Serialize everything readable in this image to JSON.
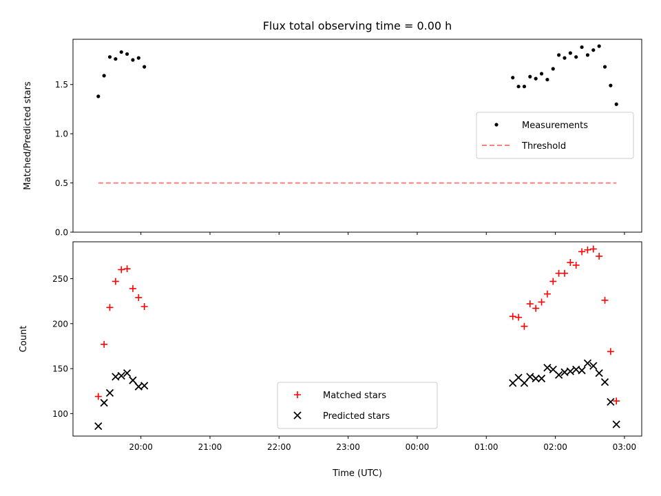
{
  "title": "Flux total observing time = 0.00 h",
  "chart_data": [
    {
      "type": "scatter",
      "ylabel": "Matched/Predicted stars",
      "xlabel": "",
      "xlim": [
        "19:01",
        "03:15"
      ],
      "ylim": [
        0.0,
        1.96
      ],
      "y_ticks": [
        "0.0",
        "0.5",
        "1.0",
        "1.5"
      ],
      "x_ticks": [
        "20:00",
        "21:00",
        "22:00",
        "23:00",
        "00:00",
        "01:00",
        "02:00",
        "03:00"
      ],
      "x_tick_labels_visible": false,
      "legend": {
        "position": "center-right",
        "entries": [
          "Measurements",
          "Threshold"
        ]
      },
      "series": [
        {
          "name": "Measurements",
          "marker": "dot",
          "color": "#000000",
          "points": [
            [
              "19:23",
              1.38
            ],
            [
              "19:28",
              1.59
            ],
            [
              "19:33",
              1.78
            ],
            [
              "19:38",
              1.76
            ],
            [
              "19:43",
              1.83
            ],
            [
              "19:48",
              1.81
            ],
            [
              "19:53",
              1.75
            ],
            [
              "19:58",
              1.77
            ],
            [
              "20:03",
              1.68
            ],
            [
              "01:23",
              1.57
            ],
            [
              "01:28",
              1.48
            ],
            [
              "01:33",
              1.48
            ],
            [
              "01:38",
              1.58
            ],
            [
              "01:43",
              1.56
            ],
            [
              "01:48",
              1.61
            ],
            [
              "01:53",
              1.55
            ],
            [
              "01:58",
              1.66
            ],
            [
              "02:03",
              1.8
            ],
            [
              "02:08",
              1.77
            ],
            [
              "02:13",
              1.82
            ],
            [
              "02:18",
              1.78
            ],
            [
              "02:23",
              1.88
            ],
            [
              "02:28",
              1.8
            ],
            [
              "02:33",
              1.85
            ],
            [
              "02:38",
              1.89
            ],
            [
              "02:43",
              1.68
            ],
            [
              "02:48",
              1.49
            ],
            [
              "02:53",
              1.3
            ]
          ]
        },
        {
          "name": "Threshold",
          "style": "dashed-line",
          "color": "#ff7f7f",
          "points": [
            [
              "19:23",
              0.5
            ],
            [
              "02:53",
              0.5
            ]
          ]
        }
      ]
    },
    {
      "type": "scatter",
      "ylabel": "Count",
      "xlabel": "Time (UTC)",
      "xlim": [
        "19:01",
        "03:15"
      ],
      "ylim": [
        75,
        291
      ],
      "y_ticks": [
        "100",
        "150",
        "200",
        "250"
      ],
      "x_ticks": [
        "20:00",
        "21:00",
        "22:00",
        "23:00",
        "00:00",
        "01:00",
        "02:00",
        "03:00"
      ],
      "legend": {
        "position": "lower-center",
        "entries": [
          "Matched stars",
          "Predicted stars"
        ]
      },
      "series": [
        {
          "name": "Matched stars",
          "marker": "plus",
          "color": "#ff0000",
          "points": [
            [
              "19:23",
              119
            ],
            [
              "19:28",
              177
            ],
            [
              "19:33",
              218
            ],
            [
              "19:38",
              247
            ],
            [
              "19:43",
              260
            ],
            [
              "19:48",
              261
            ],
            [
              "19:53",
              239
            ],
            [
              "19:58",
              229
            ],
            [
              "20:03",
              219
            ],
            [
              "01:23",
              208
            ],
            [
              "01:28",
              207
            ],
            [
              "01:33",
              197
            ],
            [
              "01:38",
              222
            ],
            [
              "01:43",
              217
            ],
            [
              "01:48",
              224
            ],
            [
              "01:53",
              233
            ],
            [
              "01:58",
              247
            ],
            [
              "02:03",
              256
            ],
            [
              "02:08",
              256
            ],
            [
              "02:13",
              268
            ],
            [
              "02:18",
              265
            ],
            [
              "02:23",
              280
            ],
            [
              "02:28",
              282
            ],
            [
              "02:33",
              283
            ],
            [
              "02:38",
              275
            ],
            [
              "02:43",
              226
            ],
            [
              "02:48",
              169
            ],
            [
              "02:53",
              114
            ]
          ]
        },
        {
          "name": "Predicted stars",
          "marker": "x",
          "color": "#000000",
          "points": [
            [
              "19:23",
              86
            ],
            [
              "19:28",
              112
            ],
            [
              "19:33",
              123
            ],
            [
              "19:38",
              141
            ],
            [
              "19:43",
              142
            ],
            [
              "19:48",
              145
            ],
            [
              "19:53",
              137
            ],
            [
              "19:58",
              130
            ],
            [
              "20:03",
              131
            ],
            [
              "01:23",
              134
            ],
            [
              "01:28",
              140
            ],
            [
              "01:33",
              134
            ],
            [
              "01:38",
              141
            ],
            [
              "01:43",
              139
            ],
            [
              "01:48",
              139
            ],
            [
              "01:53",
              151
            ],
            [
              "01:58",
              149
            ],
            [
              "02:03",
              143
            ],
            [
              "02:08",
              146
            ],
            [
              "02:13",
              147
            ],
            [
              "02:18",
              149
            ],
            [
              "02:23",
              148
            ],
            [
              "02:28",
              156
            ],
            [
              "02:33",
              153
            ],
            [
              "02:38",
              145
            ],
            [
              "02:43",
              135
            ],
            [
              "02:48",
              113
            ],
            [
              "02:53",
              88
            ]
          ]
        }
      ]
    }
  ]
}
